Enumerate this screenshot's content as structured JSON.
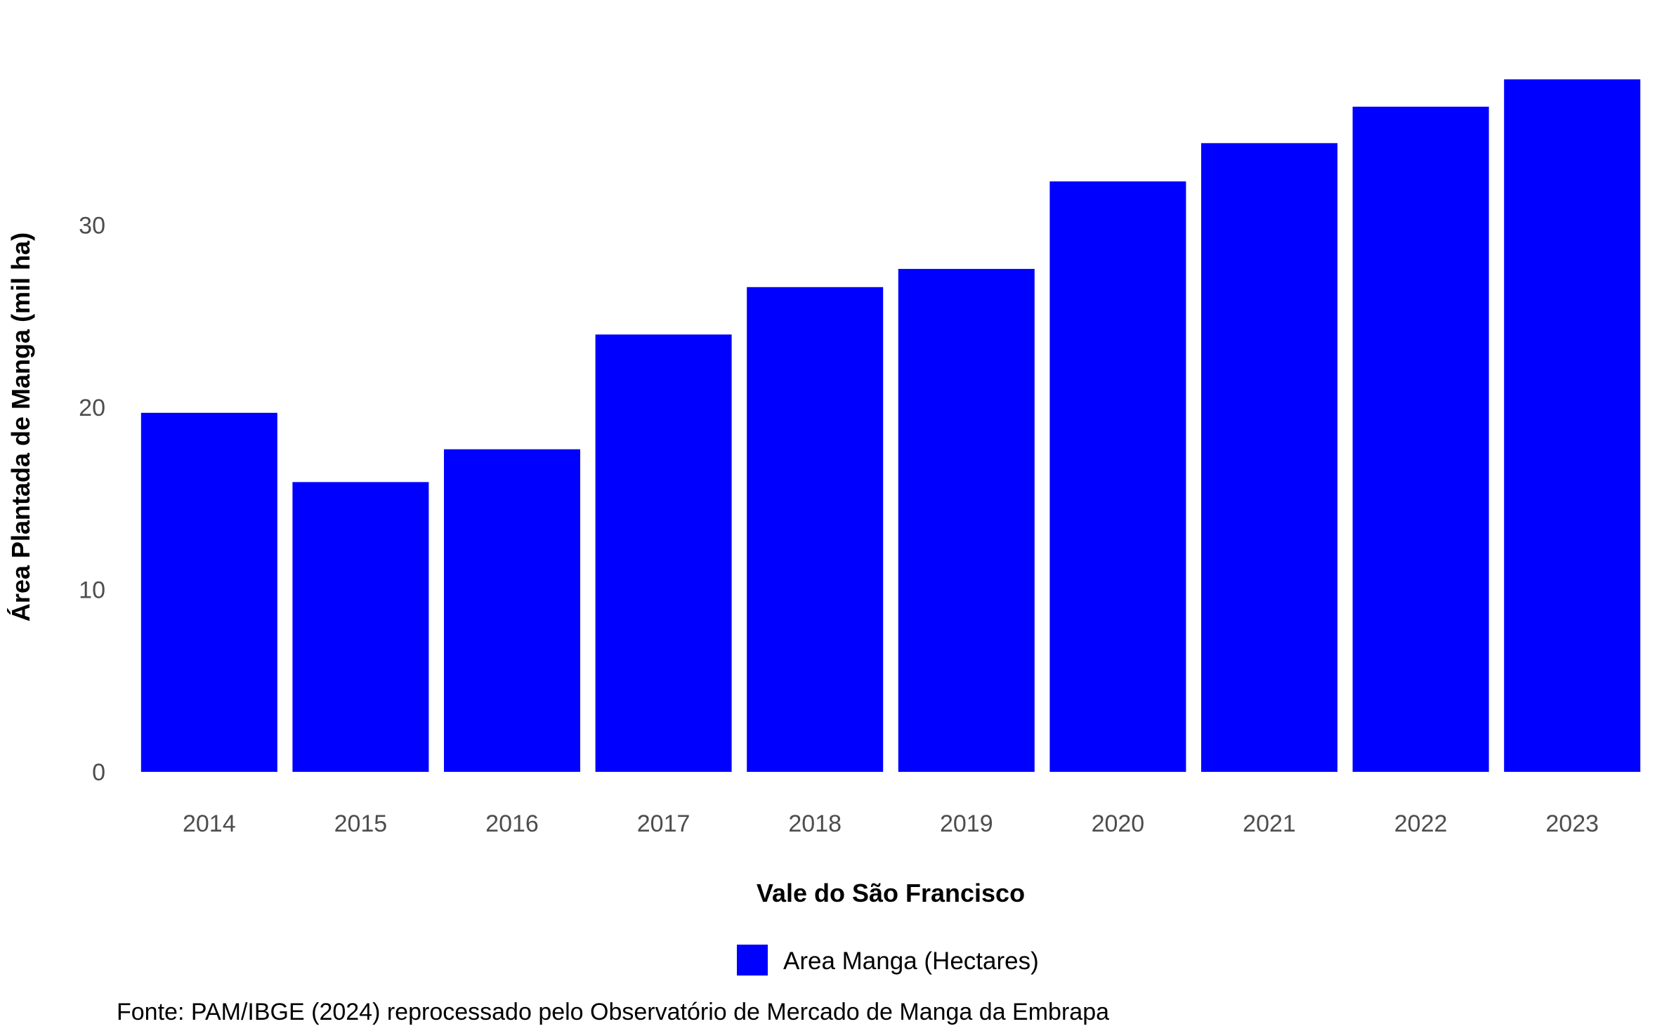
{
  "chart_data": {
    "type": "bar",
    "categories": [
      "2014",
      "2015",
      "2016",
      "2017",
      "2018",
      "2019",
      "2020",
      "2021",
      "2022",
      "2023"
    ],
    "series": [
      {
        "name": "Area Manga (Hectares)",
        "values": [
          19.7,
          15.9,
          17.7,
          24.0,
          26.6,
          27.6,
          32.4,
          34.5,
          36.5,
          38.0
        ],
        "color": "#0000ff"
      }
    ],
    "xlabel": "Vale do São Francisco",
    "ylabel": "Área Plantada de Manga (mil ha)",
    "ylim": [
      0,
      38.0
    ],
    "yticks": [
      0,
      10,
      20,
      30
    ],
    "ytick_labels": [
      "0",
      "10",
      "20",
      "30"
    ],
    "grid": false,
    "legend_position": "bottom"
  },
  "caption": "Fonte: PAM/IBGE (2024) reprocessado pelo Observatório de Mercado de Manga da Embrapa"
}
